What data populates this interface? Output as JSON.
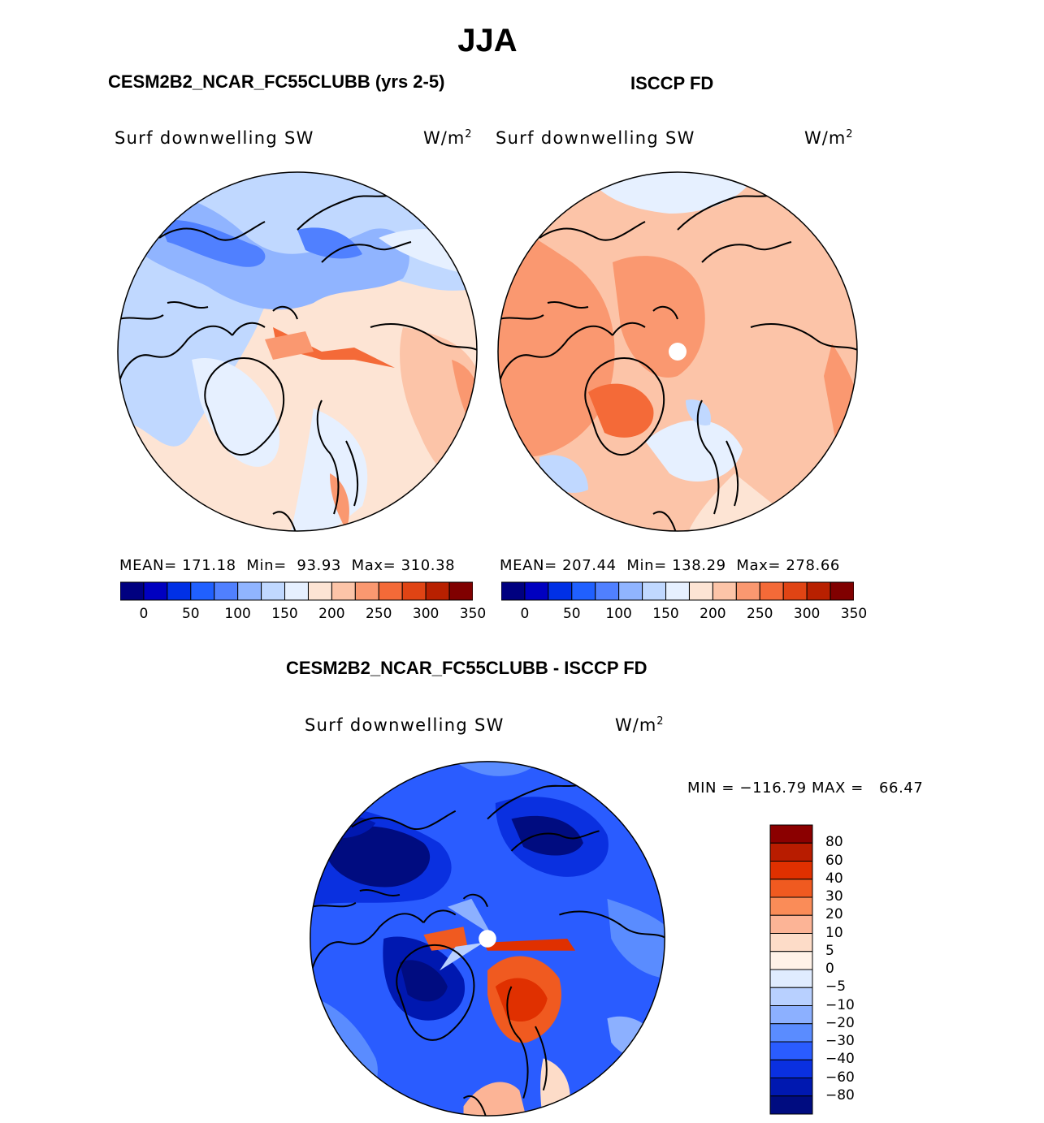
{
  "figure": {
    "title": "JJA",
    "left_panel": {
      "title": "CESM2B2_NCAR_FC55CLUBB (yrs 2-5)",
      "field": "Surf downwelling SW",
      "units_base": "W/m",
      "units_exp": "2",
      "stats": {
        "mean_label": "MEAN=",
        "mean": "171.18",
        "min_label": "Min=",
        "min": "93.93",
        "max_label": "Max=",
        "max": "310.38"
      }
    },
    "right_panel": {
      "title": "ISCCP FD",
      "field": "Surf downwelling SW",
      "units_base": "W/m",
      "units_exp": "2",
      "stats": {
        "mean_label": "MEAN=",
        "mean": "207.44",
        "min_label": "Min=",
        "min": "138.29",
        "max_label": "Max=",
        "max": "278.66"
      }
    },
    "diff_panel": {
      "title": "CESM2B2_NCAR_FC55CLUBB - ISCCP FD",
      "field": "Surf downwelling SW",
      "units_base": "W/m",
      "units_exp": "2",
      "stats_text": "MIN = −116.79 MAX =   66.47",
      "min": -116.79,
      "max": 66.47
    }
  },
  "chart_data": [
    {
      "type": "polar_contour_map",
      "title": "CESM2B2_NCAR_FC55CLUBB (yrs 2-5)",
      "variable": "Surf downwelling SW",
      "units": "W/m2",
      "mean": 171.18,
      "min": 93.93,
      "max": 310.38,
      "colorbar_ticks": [
        "0",
        "50",
        "100",
        "150",
        "200",
        "250",
        "300",
        "350"
      ],
      "colorbar_colors": [
        "#000080",
        "#0000c0",
        "#0030e6",
        "#2060ff",
        "#5080ff",
        "#90b4ff",
        "#c0d8ff",
        "#e6f0ff",
        "#fde4d4",
        "#fcc4a8",
        "#fa9870",
        "#f46a38",
        "#e04414",
        "#b82000",
        "#800000"
      ]
    },
    {
      "type": "polar_contour_map",
      "title": "ISCCP FD",
      "variable": "Surf downwelling SW",
      "units": "W/m2",
      "mean": 207.44,
      "min": 138.29,
      "max": 278.66,
      "colorbar_ticks": [
        "0",
        "50",
        "100",
        "150",
        "200",
        "250",
        "300",
        "350"
      ],
      "colorbar_colors": [
        "#000080",
        "#0000c0",
        "#0030e6",
        "#2060ff",
        "#5080ff",
        "#90b4ff",
        "#c0d8ff",
        "#e6f0ff",
        "#fde4d4",
        "#fcc4a8",
        "#fa9870",
        "#f46a38",
        "#e04414",
        "#b82000",
        "#800000"
      ]
    },
    {
      "type": "polar_contour_map",
      "title": "CESM2B2_NCAR_FC55CLUBB - ISCCP FD",
      "variable": "Surf downwelling SW",
      "units": "W/m2",
      "min": -116.79,
      "max": 66.47,
      "colorbar_ticks": [
        "80",
        "60",
        "40",
        "30",
        "20",
        "10",
        "5",
        "0",
        "−5",
        "−10",
        "−20",
        "−30",
        "−40",
        "−60",
        "−80"
      ],
      "colorbar_colors": [
        "#8b0000",
        "#b81c00",
        "#e03000",
        "#f05a20",
        "#fa8c58",
        "#fcb496",
        "#fddcc8",
        "#fff2e8",
        "#e0ecff",
        "#b8d0ff",
        "#8cb0ff",
        "#5a8cff",
        "#2a5cff",
        "#0a30e0",
        "#0018b0",
        "#000c80"
      ]
    }
  ]
}
